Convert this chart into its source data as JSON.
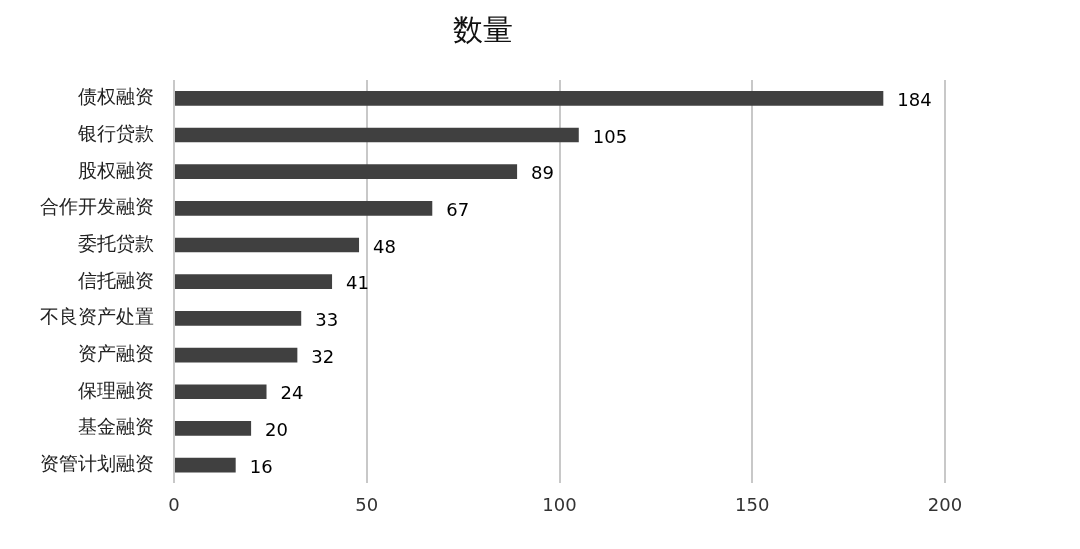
{
  "chart_data": {
    "type": "bar",
    "orientation": "horizontal",
    "title": "数量",
    "categories": [
      "债权融资",
      "银行贷款",
      "股权融资",
      "合作开发融资",
      "委托贷款",
      "信托融资",
      "不良资产处置",
      "资产融资",
      "保理融资",
      "基金融资",
      "资管计划融资"
    ],
    "values": [
      184,
      105,
      89,
      67,
      48,
      41,
      33,
      32,
      24,
      20,
      16
    ],
    "color": "#404040",
    "xlim": [
      0,
      200
    ],
    "xticks": [
      0,
      50,
      100,
      150,
      200
    ],
    "grid": "x",
    "legend": false,
    "data_labels": true
  }
}
